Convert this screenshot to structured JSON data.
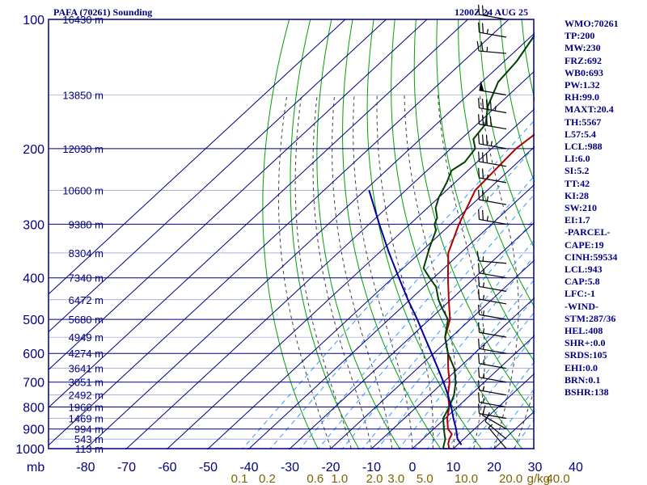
{
  "chart_data": {
    "type": "line",
    "title": "PAFA (70261) Sounding",
    "valid_time": "1200Z 24 AUG 25",
    "pressure_axis_label": "mb",
    "pressure_ticks": [
      {
        "p": 100,
        "label": "100"
      },
      {
        "p": 200,
        "label": "200"
      },
      {
        "p": 300,
        "label": "300"
      },
      {
        "p": 400,
        "label": "400"
      },
      {
        "p": 500,
        "label": "500"
      },
      {
        "p": 600,
        "label": "600"
      },
      {
        "p": 700,
        "label": "700"
      },
      {
        "p": 800,
        "label": "800"
      },
      {
        "p": 900,
        "label": "900"
      },
      {
        "p": 1000,
        "label": "1000"
      }
    ],
    "height_labels": [
      {
        "p": 100,
        "label": "16430 m"
      },
      {
        "p": 150,
        "label": "13850 m"
      },
      {
        "p": 200,
        "label": "12030 m"
      },
      {
        "p": 250,
        "label": "10600 m"
      },
      {
        "p": 300,
        "label": "9380 m"
      },
      {
        "p": 350,
        "label": "8304 m"
      },
      {
        "p": 400,
        "label": "7340 m"
      },
      {
        "p": 450,
        "label": "6472 m"
      },
      {
        "p": 500,
        "label": "5680 m"
      },
      {
        "p": 550,
        "label": "4949 m"
      },
      {
        "p": 600,
        "label": "4274 m"
      },
      {
        "p": 650,
        "label": "3641 m"
      },
      {
        "p": 700,
        "label": "3051 m"
      },
      {
        "p": 750,
        "label": "2492 m"
      },
      {
        "p": 800,
        "label": "1966 m"
      },
      {
        "p": 850,
        "label": "1469 m"
      },
      {
        "p": 900,
        "label": "994 m"
      },
      {
        "p": 950,
        "label": "543 m"
      },
      {
        "p": 1000,
        "label": "113 m"
      }
    ],
    "temperature_ticks": [
      "-80",
      "-70",
      "-60",
      "-50",
      "-40",
      "-30",
      "-20",
      "-10",
      "0",
      "10",
      "20",
      "30",
      "40"
    ],
    "mixing_ratio_labels": [
      {
        "w": 0.1,
        "label": "0.1"
      },
      {
        "w": 0.2,
        "label": "0.2"
      },
      {
        "w": 0.6,
        "label": "0.6"
      },
      {
        "w": 1.0,
        "label": "1.0"
      },
      {
        "w": 2.0,
        "label": "2.0"
      },
      {
        "w": 3.0,
        "label": "3.0"
      },
      {
        "w": 5.0,
        "label": "5.0"
      },
      {
        "w": 10.0,
        "label": "10.0"
      },
      {
        "w": 20.0,
        "label": "20.0"
      },
      {
        "w": 40.0,
        "label": "40.0"
      }
    ],
    "mixing_ratio_unit": "g/kg",
    "series": [
      {
        "key": "temperature",
        "color": "#b00000",
        "points": [
          [
            1003,
            11
          ],
          [
            1000,
            9
          ],
          [
            975,
            7.5
          ],
          [
            950,
            6.5
          ],
          [
            925,
            5.8
          ],
          [
            900,
            3.5
          ],
          [
            850,
            0.5
          ],
          [
            800,
            -2
          ],
          [
            750,
            -5.5
          ],
          [
            700,
            -8.5
          ],
          [
            650,
            -12.5
          ],
          [
            600,
            -16.5
          ],
          [
            550,
            -21.5
          ],
          [
            500,
            -25
          ],
          [
            450,
            -30.5
          ],
          [
            400,
            -36.5
          ],
          [
            350,
            -43
          ],
          [
            300,
            -48
          ],
          [
            250,
            -53
          ],
          [
            200,
            -54
          ],
          [
            190,
            -53.5
          ],
          [
            175,
            -52.5
          ],
          [
            165,
            -53
          ],
          [
            150,
            -51
          ],
          [
            130,
            -50
          ],
          [
            110,
            -51
          ],
          [
            100,
            -52
          ]
        ]
      },
      {
        "key": "dewpoint",
        "color": "#004000",
        "points": [
          [
            1003,
            9
          ],
          [
            1000,
            7.5
          ],
          [
            975,
            6.5
          ],
          [
            950,
            5.5
          ],
          [
            925,
            4
          ],
          [
            900,
            2.5
          ],
          [
            850,
            -0.5
          ],
          [
            800,
            -2
          ],
          [
            750,
            -4
          ],
          [
            700,
            -7
          ],
          [
            650,
            -11
          ],
          [
            600,
            -16.5
          ],
          [
            550,
            -21.5
          ],
          [
            500,
            -25.5
          ],
          [
            470,
            -30
          ],
          [
            450,
            -33
          ],
          [
            420,
            -37
          ],
          [
            400,
            -41
          ],
          [
            380,
            -45
          ],
          [
            340,
            -49
          ],
          [
            310,
            -52
          ],
          [
            300,
            -54
          ],
          [
            290,
            -55
          ],
          [
            275,
            -58
          ],
          [
            260,
            -60
          ],
          [
            240,
            -62
          ],
          [
            225,
            -64
          ],
          [
            215,
            -63
          ],
          [
            200,
            -64
          ],
          [
            190,
            -67
          ],
          [
            175,
            -68
          ],
          [
            160,
            -72
          ],
          [
            140,
            -76
          ],
          [
            125,
            -77
          ],
          [
            100,
            -81
          ]
        ]
      },
      {
        "key": "parcel",
        "color": "#0000a0",
        "points": [
          [
            980,
            11
          ],
          [
            950,
            8.5
          ],
          [
            900,
            5.5
          ],
          [
            850,
            2
          ],
          [
            800,
            -1.5
          ],
          [
            750,
            -5.5
          ],
          [
            700,
            -10
          ],
          [
            650,
            -15
          ],
          [
            600,
            -20.5
          ],
          [
            550,
            -26.5
          ],
          [
            500,
            -33
          ],
          [
            450,
            -40.5
          ],
          [
            400,
            -48.5
          ],
          [
            350,
            -57.5
          ],
          [
            300,
            -67.5
          ],
          [
            250,
            -79
          ]
        ]
      }
    ],
    "wind_barbs": [
      {
        "p": 100,
        "dir": 280,
        "speed": 25
      },
      {
        "p": 110,
        "dir": 280,
        "speed": 25
      },
      {
        "p": 120,
        "dir": 275,
        "speed": 25
      },
      {
        "p": 150,
        "dir": 280,
        "speed": 50
      },
      {
        "p": 165,
        "dir": 280,
        "speed": 45
      },
      {
        "p": 180,
        "dir": 280,
        "speed": 40
      },
      {
        "p": 200,
        "dir": 280,
        "speed": 35
      },
      {
        "p": 220,
        "dir": 280,
        "speed": 30
      },
      {
        "p": 240,
        "dir": 280,
        "speed": 25
      },
      {
        "p": 270,
        "dir": 280,
        "speed": 25
      },
      {
        "p": 300,
        "dir": 280,
        "speed": 25
      },
      {
        "p": 370,
        "dir": 275,
        "speed": 15
      },
      {
        "p": 400,
        "dir": 280,
        "speed": 15
      },
      {
        "p": 430,
        "dir": 280,
        "speed": 15
      },
      {
        "p": 460,
        "dir": 280,
        "speed": 15
      },
      {
        "p": 500,
        "dir": 280,
        "speed": 15
      },
      {
        "p": 550,
        "dir": 280,
        "speed": 15
      },
      {
        "p": 600,
        "dir": 280,
        "speed": 15
      },
      {
        "p": 650,
        "dir": 280,
        "speed": 15
      },
      {
        "p": 700,
        "dir": 280,
        "speed": 15
      },
      {
        "p": 750,
        "dir": 280,
        "speed": 15
      },
      {
        "p": 800,
        "dir": 280,
        "speed": 15
      },
      {
        "p": 850,
        "dir": 280,
        "speed": 15
      },
      {
        "p": 900,
        "dir": 300,
        "speed": 10
      },
      {
        "p": 950,
        "dir": 310,
        "speed": 10
      },
      {
        "p": 1000,
        "dir": 320,
        "speed": 5
      }
    ],
    "colors": {
      "frame": "#000080",
      "isobar": "#000080",
      "isotherm": "#000080",
      "dry_adiabat": "#00a000",
      "moist_adiabat": "#404040",
      "mixing_ratio": "#3399ff",
      "mixing_ratio_label": "#806000",
      "label": "#000080",
      "axis_tick": "#000080"
    }
  },
  "indices": [
    "WMO:70261",
    "TP:200",
    "MW:230",
    "FRZ:692",
    "WB0:693",
    "PW:1.32",
    "RH:99.0",
    "MAXT:20.4",
    "TH:5567",
    "L57:5.4",
    "LCL:988",
    "LI:6.0",
    "SI:5.2",
    "TT:42",
    "KI:28",
    "SW:210",
    "EI:1.7",
    "-PARCEL-",
    "CAPE:19",
    "CINH:59534",
    "LCL:943",
    "CAP:5.8",
    "LFC:-1",
    "-WIND-",
    "STM:287/36",
    "HEL:408",
    "SHR+:0.0",
    "SRDS:105",
    "EHI:0.0",
    "BRN:0.1",
    "BSHR:138"
  ]
}
